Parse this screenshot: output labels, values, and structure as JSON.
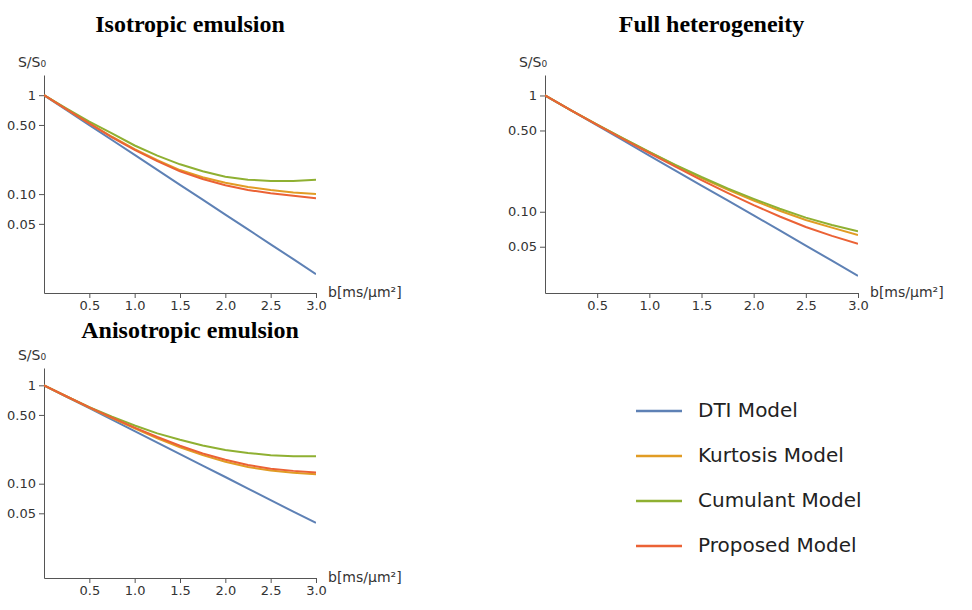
{
  "chart_data": [
    {
      "type": "line",
      "title": "Isotropic emulsion",
      "xlabel": "b[ms/μm²]",
      "ylabel": "S/S₀",
      "log": "y",
      "x": [
        0,
        0.25,
        0.5,
        0.75,
        1,
        1.25,
        1.5,
        1.75,
        2,
        2.25,
        2.5,
        2.75,
        3
      ],
      "xlim": [
        0,
        3
      ],
      "ylim": [
        0.01,
        1.6
      ],
      "xticks": [
        0.5,
        {
          "value": 1,
          "label": "1.0"
        },
        1.5,
        {
          "value": 2,
          "label": "2.0"
        },
        2.5,
        {
          "value": 3,
          "label": "3.0"
        }
      ],
      "yticks": [
        0.05,
        {
          "value": 0.1,
          "label": "0.10"
        },
        {
          "value": 0.5,
          "label": "0.50"
        },
        1
      ],
      "series": [
        {
          "color": "#5E81B5",
          "values": [
            1,
            0.706,
            0.499,
            0.352,
            0.249,
            0.176,
            0.124,
            0.088,
            0.062,
            0.044,
            0.031,
            0.022,
            0.0155
          ]
        },
        {
          "color": "#E19C24",
          "values": [
            1,
            0.72,
            0.52,
            0.38,
            0.285,
            0.22,
            0.175,
            0.148,
            0.13,
            0.118,
            0.11,
            0.104,
            0.1
          ]
        },
        {
          "color": "#8FB032",
          "values": [
            1,
            0.73,
            0.54,
            0.41,
            0.31,
            0.245,
            0.2,
            0.17,
            0.15,
            0.14,
            0.136,
            0.136,
            0.14
          ]
        },
        {
          "color": "#EB6235",
          "values": [
            1,
            0.72,
            0.52,
            0.375,
            0.28,
            0.215,
            0.17,
            0.142,
            0.123,
            0.11,
            0.102,
            0.096,
            0.091
          ]
        }
      ]
    },
    {
      "type": "line",
      "title": "Full heterogeneity",
      "xlabel": "b[ms/μm²]",
      "ylabel": "S/S₀",
      "log": "y",
      "legend": "bottom",
      "x": [
        0,
        0.25,
        0.5,
        0.75,
        1,
        1.25,
        1.5,
        1.75,
        2,
        2.25,
        2.5,
        2.75,
        3
      ],
      "xlim": [
        0,
        3
      ],
      "ylim": [
        0.02,
        1.5
      ],
      "xticks": [
        0.5,
        {
          "value": 1,
          "label": "1.0"
        },
        1.5,
        {
          "value": 2,
          "label": "2.0"
        },
        2.5,
        {
          "value": 3,
          "label": "3.0"
        }
      ],
      "yticks": [
        0.05,
        {
          "value": 0.1,
          "label": "0.10"
        },
        {
          "value": 0.5,
          "label": "0.50"
        },
        1
      ],
      "series": [
        {
          "name": "DTI Model",
          "color": "#5E81B5",
          "values": [
            1,
            0.743,
            0.552,
            0.41,
            0.304,
            0.226,
            0.168,
            0.125,
            0.093,
            0.069,
            0.051,
            0.038,
            0.028
          ]
        },
        {
          "name": "Kurtosis Model",
          "color": "#E19C24",
          "values": [
            1,
            0.745,
            0.56,
            0.425,
            0.325,
            0.25,
            0.195,
            0.155,
            0.125,
            0.102,
            0.085,
            0.073,
            0.063
          ]
        },
        {
          "name": "Cumulant Model",
          "color": "#8FB032",
          "values": [
            1,
            0.745,
            0.561,
            0.427,
            0.327,
            0.253,
            0.199,
            0.159,
            0.129,
            0.106,
            0.089,
            0.077,
            0.068
          ]
        },
        {
          "name": "Proposed Model",
          "color": "#EB6235",
          "values": [
            1,
            0.745,
            0.558,
            0.422,
            0.32,
            0.244,
            0.187,
            0.145,
            0.114,
            0.091,
            0.074,
            0.062,
            0.053
          ]
        }
      ]
    },
    {
      "type": "line",
      "title": "Anisotropic emulsion",
      "xlabel": "b[ms/μm²]",
      "ylabel": "S/S₀",
      "log": "y",
      "x": [
        0,
        0.25,
        0.5,
        0.75,
        1,
        1.25,
        1.5,
        1.75,
        2,
        2.25,
        2.5,
        2.75,
        3
      ],
      "xlim": [
        0,
        3
      ],
      "ylim": [
        0.011,
        1.5
      ],
      "xticks": [
        0.5,
        {
          "value": 1,
          "label": "1.0"
        },
        1.5,
        {
          "value": 2,
          "label": "2.0"
        },
        2.5,
        {
          "value": 3,
          "label": "3.0"
        }
      ],
      "yticks": [
        0.05,
        {
          "value": 0.1,
          "label": "0.10"
        },
        {
          "value": 0.5,
          "label": "0.50"
        },
        1
      ],
      "series": [
        {
          "color": "#5E81B5",
          "values": [
            1,
            0.765,
            0.585,
            0.447,
            0.342,
            0.262,
            0.2,
            0.153,
            0.117,
            0.089,
            0.068,
            0.052,
            0.04
          ]
        },
        {
          "color": "#E19C24",
          "values": [
            1,
            0.77,
            0.595,
            0.465,
            0.365,
            0.29,
            0.235,
            0.195,
            0.167,
            0.148,
            0.136,
            0.129,
            0.125
          ]
        },
        {
          "color": "#8FB032",
          "values": [
            1,
            0.77,
            0.6,
            0.48,
            0.39,
            0.325,
            0.28,
            0.245,
            0.22,
            0.205,
            0.195,
            0.19,
            0.19
          ]
        },
        {
          "color": "#EB6235",
          "values": [
            1,
            0.77,
            0.597,
            0.47,
            0.372,
            0.298,
            0.243,
            0.203,
            0.175,
            0.155,
            0.142,
            0.135,
            0.13
          ]
        }
      ]
    }
  ]
}
